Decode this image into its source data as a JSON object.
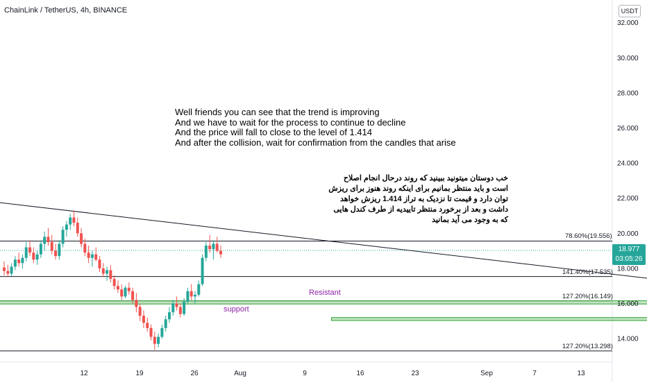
{
  "header": {
    "title": "ChainLink / TetherUS, 4h, BINANCE",
    "currency": "USDT"
  },
  "last_price": {
    "value": "18.977",
    "countdown": "03:05:26"
  },
  "annotations": {
    "english": "Well friends you can see that the trend is improving\nAnd we have to wait for the process to continue to decline\nAnd the price will fall to close to the level of 1.414\nAnd after the collision, wait for confirmation from the candles that arise",
    "persian": "خب دوستان میتونید ببینید که روند درحال انجام اصلاح است و باید منتظر بمانیم برای اینکه روند هنوز برای ریزش توان دارد و قیمت تا نزدیک به تراز 1.414 ریزش خواهد داشت و بعد از برخورد منتظر تاییدیه از طرف کندل هایی که به وجود می آید بمانید",
    "resistant": "Resistant",
    "support": "support"
  },
  "colors": {
    "up": "#26a69a",
    "down": "#ef5350",
    "zone": "#4caf50",
    "label": "#8e24aa"
  },
  "chart_data": {
    "type": "candlestick",
    "symbol": "ChainLink / TetherUS",
    "interval": "4h",
    "exchange": "BINANCE",
    "ylim": [
      13.0,
      32.6
    ],
    "y_ticks": [
      "32.000",
      "30.000",
      "28.000",
      "26.000",
      "24.000",
      "22.000",
      "20.000",
      "18.000",
      "16.000",
      "14.000"
    ],
    "x_ticks": [
      "12",
      "19",
      "26",
      "Aug",
      "9",
      "16",
      "23",
      "Sep",
      "7",
      "13"
    ],
    "grid": false,
    "levels": [
      {
        "label": "78.60%(19.556)",
        "value": 19.556
      },
      {
        "label": "141.40%(17.535)",
        "value": 17.535
      },
      {
        "label": "127.20%(16.149)",
        "value": 16.149
      },
      {
        "label": "127.20%(13.298)",
        "value": 13.298
      }
    ],
    "last_price": 18.977,
    "trendline_points": [
      {
        "bar": -12,
        "price": 22.0
      },
      {
        "bar": 240,
        "price": 16.1
      }
    ],
    "zones": [
      {
        "name": "Resistant",
        "from_bar": -12,
        "to_bar": 282,
        "low": 15.97,
        "high": 16.16
      },
      {
        "name": "support",
        "from_bar": 93,
        "to_bar": 209,
        "low": 15.03,
        "high": 15.2
      }
    ],
    "projection": [
      {
        "bar": 184,
        "price": 18.5
      },
      {
        "bar": 193,
        "price": 17.6
      },
      {
        "bar": 214,
        "price": 18.85
      }
    ],
    "candles": [
      {
        "o": 18.05,
        "h": 18.4,
        "l": 17.6,
        "c": 17.85
      },
      {
        "o": 17.85,
        "h": 18.2,
        "l": 17.5,
        "c": 17.7
      },
      {
        "o": 17.7,
        "h": 18.3,
        "l": 17.55,
        "c": 18.1
      },
      {
        "o": 18.1,
        "h": 18.7,
        "l": 17.9,
        "c": 18.5
      },
      {
        "o": 18.5,
        "h": 18.9,
        "l": 18.1,
        "c": 18.3
      },
      {
        "o": 18.3,
        "h": 18.8,
        "l": 18.0,
        "c": 18.6
      },
      {
        "o": 18.6,
        "h": 19.5,
        "l": 18.4,
        "c": 19.2
      },
      {
        "o": 19.2,
        "h": 19.6,
        "l": 18.7,
        "c": 18.9
      },
      {
        "o": 18.9,
        "h": 19.2,
        "l": 18.3,
        "c": 18.5
      },
      {
        "o": 18.5,
        "h": 19.0,
        "l": 18.2,
        "c": 18.8
      },
      {
        "o": 18.8,
        "h": 19.6,
        "l": 18.6,
        "c": 19.4
      },
      {
        "o": 19.4,
        "h": 20.1,
        "l": 19.0,
        "c": 19.8
      },
      {
        "o": 19.8,
        "h": 20.3,
        "l": 19.3,
        "c": 19.5
      },
      {
        "o": 19.5,
        "h": 19.9,
        "l": 18.8,
        "c": 19.0
      },
      {
        "o": 19.0,
        "h": 19.4,
        "l": 18.5,
        "c": 18.7
      },
      {
        "o": 18.7,
        "h": 19.6,
        "l": 18.5,
        "c": 19.4
      },
      {
        "o": 19.4,
        "h": 20.4,
        "l": 19.2,
        "c": 20.2
      },
      {
        "o": 20.2,
        "h": 20.7,
        "l": 19.8,
        "c": 20.5
      },
      {
        "o": 20.5,
        "h": 21.1,
        "l": 20.2,
        "c": 20.9
      },
      {
        "o": 20.9,
        "h": 21.3,
        "l": 20.4,
        "c": 20.6
      },
      {
        "o": 20.6,
        "h": 20.9,
        "l": 19.8,
        "c": 20.0
      },
      {
        "o": 20.0,
        "h": 20.3,
        "l": 19.2,
        "c": 19.4
      },
      {
        "o": 19.4,
        "h": 19.7,
        "l": 18.7,
        "c": 18.9
      },
      {
        "o": 18.9,
        "h": 19.3,
        "l": 18.3,
        "c": 18.6
      },
      {
        "o": 18.6,
        "h": 19.0,
        "l": 18.1,
        "c": 18.8
      },
      {
        "o": 18.8,
        "h": 19.2,
        "l": 18.4,
        "c": 18.5
      },
      {
        "o": 18.5,
        "h": 18.7,
        "l": 17.8,
        "c": 18.0
      },
      {
        "o": 18.0,
        "h": 18.3,
        "l": 17.5,
        "c": 17.7
      },
      {
        "o": 17.7,
        "h": 18.1,
        "l": 17.3,
        "c": 17.9
      },
      {
        "o": 17.9,
        "h": 18.2,
        "l": 17.2,
        "c": 17.4
      },
      {
        "o": 17.4,
        "h": 17.6,
        "l": 16.8,
        "c": 17.0
      },
      {
        "o": 17.0,
        "h": 17.3,
        "l": 16.6,
        "c": 16.8
      },
      {
        "o": 16.8,
        "h": 17.1,
        "l": 16.2,
        "c": 16.4
      },
      {
        "o": 16.4,
        "h": 17.0,
        "l": 16.3,
        "c": 16.9
      },
      {
        "o": 16.9,
        "h": 17.2,
        "l": 16.5,
        "c": 16.7
      },
      {
        "o": 16.7,
        "h": 16.9,
        "l": 16.0,
        "c": 16.2
      },
      {
        "o": 16.2,
        "h": 16.6,
        "l": 15.5,
        "c": 15.8
      },
      {
        "o": 15.8,
        "h": 16.0,
        "l": 15.0,
        "c": 15.3
      },
      {
        "o": 15.3,
        "h": 15.6,
        "l": 14.6,
        "c": 14.9
      },
      {
        "o": 14.9,
        "h": 15.2,
        "l": 14.4,
        "c": 14.6
      },
      {
        "o": 14.6,
        "h": 14.8,
        "l": 13.9,
        "c": 14.1
      },
      {
        "o": 14.1,
        "h": 14.4,
        "l": 13.35,
        "c": 13.7
      },
      {
        "o": 13.7,
        "h": 14.3,
        "l": 13.5,
        "c": 14.1
      },
      {
        "o": 14.1,
        "h": 14.8,
        "l": 14.0,
        "c": 14.6
      },
      {
        "o": 14.6,
        "h": 15.3,
        "l": 14.4,
        "c": 15.1
      },
      {
        "o": 15.1,
        "h": 15.8,
        "l": 14.9,
        "c": 15.5
      },
      {
        "o": 15.5,
        "h": 16.2,
        "l": 15.3,
        "c": 16.0
      },
      {
        "o": 16.0,
        "h": 16.4,
        "l": 15.6,
        "c": 15.8
      },
      {
        "o": 15.8,
        "h": 16.0,
        "l": 15.2,
        "c": 15.4
      },
      {
        "o": 15.4,
        "h": 16.3,
        "l": 15.3,
        "c": 16.1
      },
      {
        "o": 16.1,
        "h": 16.9,
        "l": 16.0,
        "c": 16.7
      },
      {
        "o": 16.7,
        "h": 17.1,
        "l": 16.2,
        "c": 16.4
      },
      {
        "o": 16.4,
        "h": 16.7,
        "l": 16.0,
        "c": 16.5
      },
      {
        "o": 16.5,
        "h": 17.3,
        "l": 16.4,
        "c": 17.1
      },
      {
        "o": 17.1,
        "h": 18.8,
        "l": 17.0,
        "c": 18.6
      },
      {
        "o": 18.6,
        "h": 19.5,
        "l": 18.4,
        "c": 19.3
      },
      {
        "o": 19.3,
        "h": 19.9,
        "l": 18.9,
        "c": 19.1
      },
      {
        "o": 19.1,
        "h": 19.6,
        "l": 18.5,
        "c": 19.4
      },
      {
        "o": 19.4,
        "h": 19.8,
        "l": 18.9,
        "c": 19.0
      },
      {
        "o": 19.0,
        "h": 19.3,
        "l": 18.6,
        "c": 18.8
      }
    ]
  }
}
